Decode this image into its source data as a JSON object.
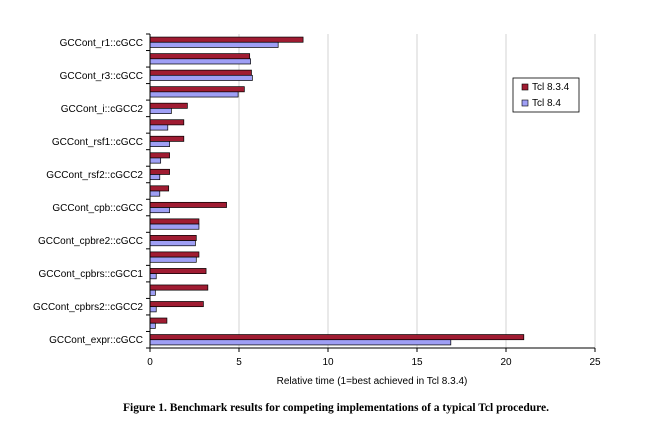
{
  "caption": "Figure 1. Benchmark results for competing implementations of a typical Tcl procedure.",
  "chart_data": {
    "type": "bar",
    "orientation": "horizontal",
    "xlabel": "Relative time (1=best achieved in Tcl 8.3.4)",
    "xlim": [
      0,
      25
    ],
    "xticks": [
      0,
      5,
      10,
      15,
      20,
      25
    ],
    "grid": true,
    "legend_position": "right",
    "labeled_categories": [
      "GCCont_r1::cGCC",
      "GCCont_r3::cGCC",
      "GCCont_i::cGCC2",
      "GCCont_rsf1::cGCC",
      "GCCont_rsf2::cGCC2",
      "GCCont_cpb::cGCC",
      "GCCont_cpbre2::cGCC",
      "GCCont_cpbrs::cGCC1",
      "GCCont_cpbrs2::cGCC2",
      "GCCont_expr::cGCC"
    ],
    "label_positions": [
      0,
      2,
      4,
      6,
      8,
      10,
      12,
      14,
      16,
      18
    ],
    "colors": [
      "#a01c32",
      "#9f9ff5"
    ],
    "series": [
      {
        "name": "Tcl 8.3.4",
        "color": "#a01c32",
        "values": [
          8.6,
          5.6,
          5.7,
          5.3,
          2.1,
          1.9,
          1.9,
          1.1,
          1.1,
          1.05,
          4.3,
          2.75,
          2.6,
          2.75,
          3.15,
          3.25,
          3.0,
          0.95,
          21.0
        ]
      },
      {
        "name": "Tcl 8.4",
        "color": "#9f9ff5",
        "values": [
          7.2,
          5.65,
          5.75,
          4.95,
          1.2,
          1.0,
          1.1,
          0.6,
          0.55,
          0.55,
          1.1,
          2.75,
          2.55,
          2.6,
          0.35,
          0.3,
          0.35,
          0.3,
          16.9
        ]
      }
    ]
  }
}
